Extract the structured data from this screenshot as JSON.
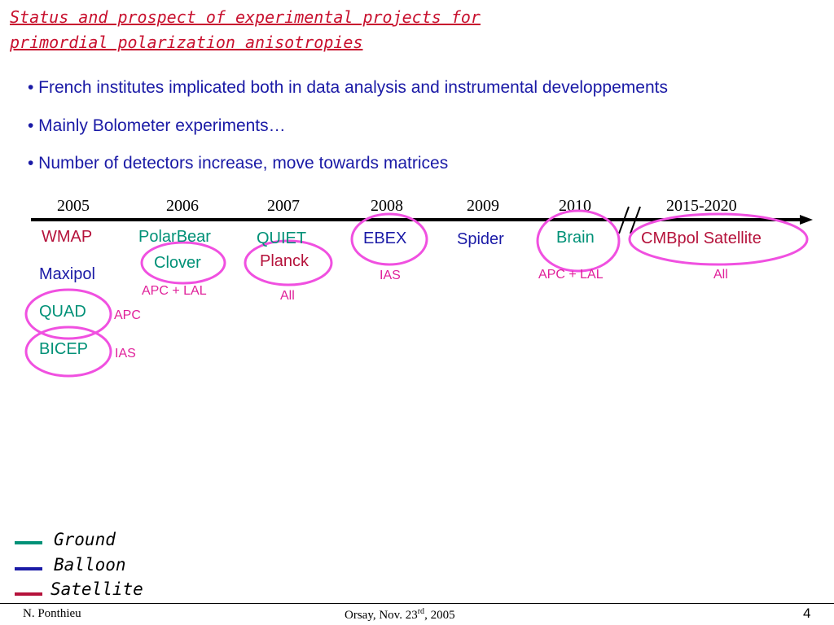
{
  "slide": {
    "title_line1": "Status and prospect of experimental projects for",
    "title_line2": "primordial polarization anisotropies",
    "bullets": [
      "• French institutes implicated both in data analysis and instrumental developpements",
      "• Mainly Bolometer experiments…",
      "• Number of detectors increase, move towards matrices"
    ],
    "timeline": {
      "years": [
        "2005",
        "2006",
        "2007",
        "2008",
        "2009",
        "2010",
        "2015-2020"
      ],
      "break_mark": "//"
    },
    "experiments": {
      "wmap": "WMAP",
      "maxipol": "Maxipol",
      "quad": "QUAD",
      "bicep": "BICEP",
      "polarbear": "PolarBear",
      "clover": "Clover",
      "quiet": "QUIET",
      "planck": "Planck",
      "ebex": "EBEX",
      "spider": "Spider",
      "brain": "Brain",
      "cmbpol": "CMBpol Satellite"
    },
    "institutes": {
      "quad": "APC",
      "bicep": "IAS",
      "clover": "APC + LAL",
      "planck": "All",
      "ebex": "IAS",
      "brain": "APC + LAL",
      "cmbpol": "All"
    },
    "legend": [
      {
        "label": "Ground",
        "color": "#009177"
      },
      {
        "label": "Balloon",
        "color": "#1a1aa6"
      },
      {
        "label": "Satellite",
        "color": "#b5123b"
      }
    ],
    "highlight_color": "#f050e0",
    "footer": {
      "author": "N. Ponthieu",
      "venue_prefix": "Orsay, Nov. 23",
      "venue_sup": "rd",
      "venue_suffix": ", 2005",
      "page": "4"
    }
  }
}
